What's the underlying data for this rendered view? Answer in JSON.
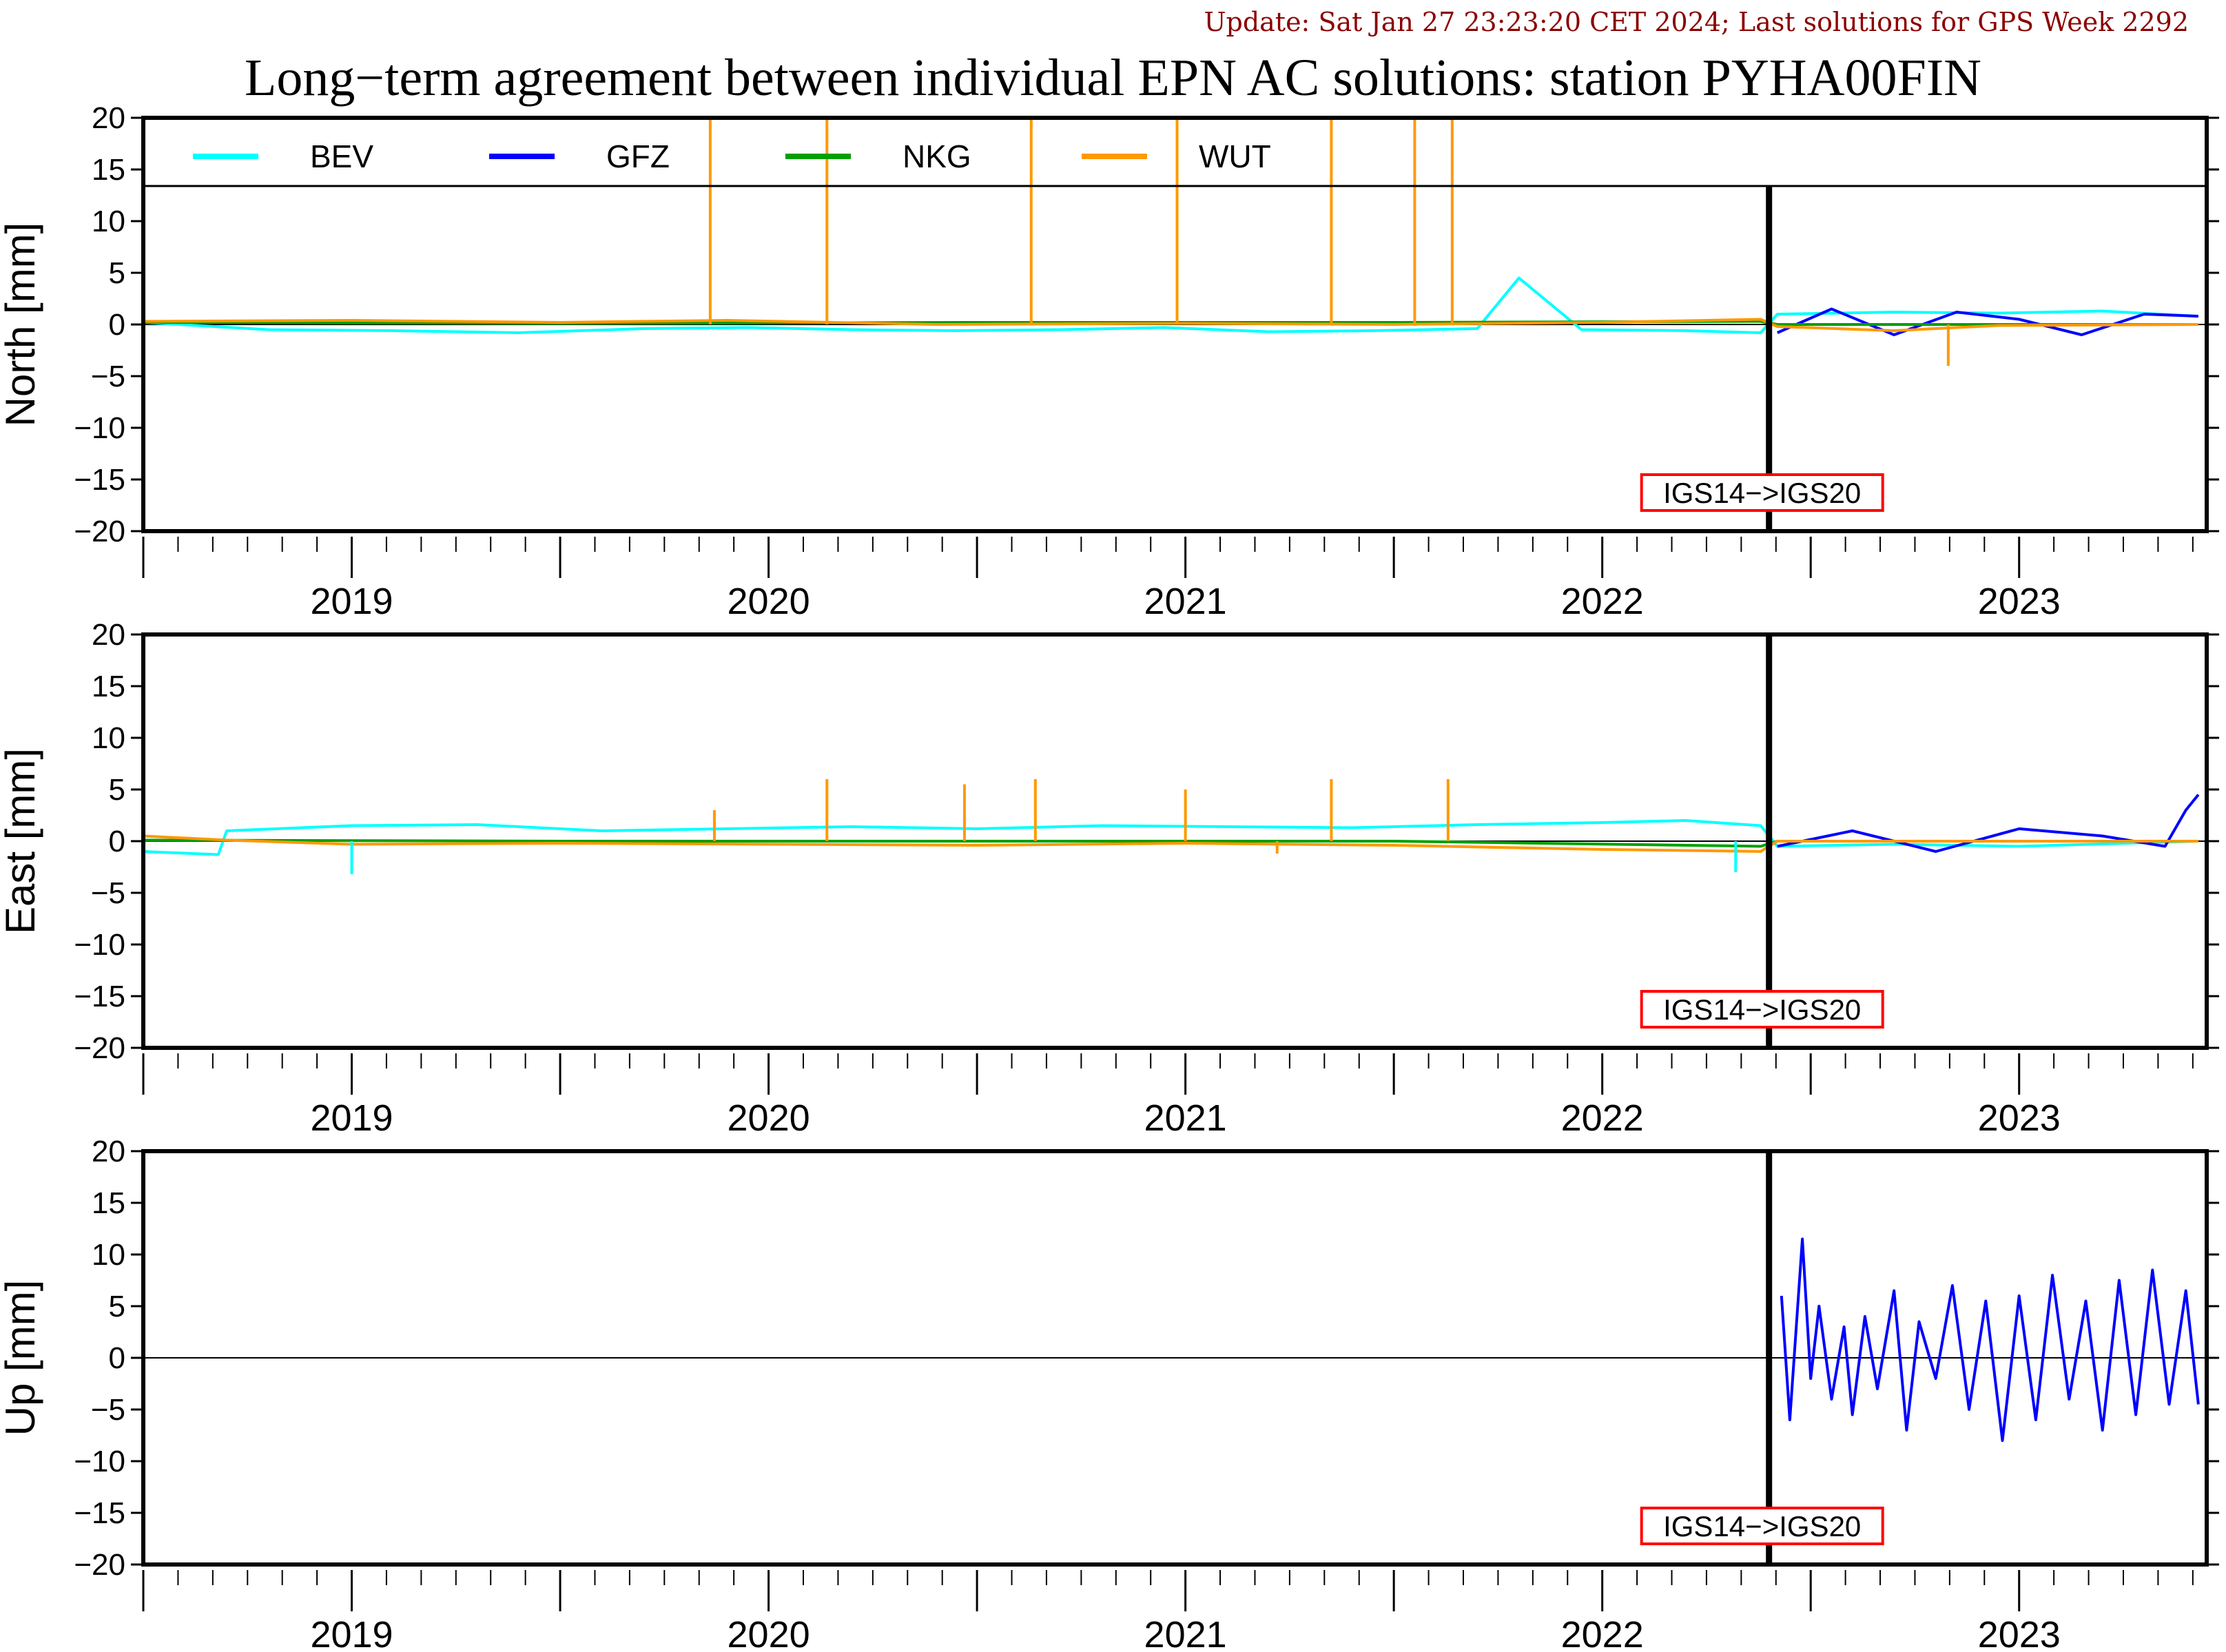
{
  "header": {
    "update_text": "Update: Sat Jan 27 23:23:20 CET 2024; Last solutions for GPS Week 2292",
    "title": "Long−term agreement between individual EPN AC solutions: station PYHA00FIN"
  },
  "colors": {
    "BEV": "#00ffff",
    "GFZ": "#0000ff",
    "NKG": "#00a000",
    "WUT": "#ff9900",
    "annotation": "#ff0000"
  },
  "legend": [
    {
      "name": "BEV",
      "color": "#00ffff"
    },
    {
      "name": "GFZ",
      "color": "#0000ff"
    },
    {
      "name": "NKG",
      "color": "#00a000"
    },
    {
      "name": "WUT",
      "color": "#ff9900"
    }
  ],
  "chart_data": [
    {
      "type": "line",
      "ylabel": "North [mm]",
      "ylim": [
        -20,
        20
      ],
      "yticks": [
        20,
        15,
        10,
        5,
        0,
        -5,
        -10,
        -15,
        -20
      ],
      "xlim": [
        2018.5,
        2023.45
      ],
      "xtick_labels": [
        "2019",
        "2020",
        "2021",
        "2022",
        "2023"
      ],
      "xtick_label_positions": [
        2019,
        2020,
        2021,
        2022,
        2023
      ],
      "frame_change": {
        "x": 2022.4,
        "label": "IGS14−>IGS20"
      },
      "legend_inside": true,
      "series": [
        {
          "name": "BEV",
          "color": "#00ffff",
          "x": [
            2018.5,
            2018.8,
            2019.1,
            2019.4,
            2019.7,
            2019.95,
            2020.2,
            2020.45,
            2020.7,
            2020.95,
            2021.2,
            2021.45,
            2021.7,
            2021.8,
            2021.95,
            2022.2,
            2022.38,
            2022.42,
            2022.7,
            2022.95,
            2023.2,
            2023.43
          ],
          "y": [
            0.2,
            -0.5,
            -0.6,
            -0.8,
            -0.4,
            -0.3,
            -0.5,
            -0.6,
            -0.5,
            -0.3,
            -0.7,
            -0.6,
            -0.4,
            4.5,
            -0.5,
            -0.6,
            -0.8,
            1.0,
            1.2,
            1.1,
            1.3,
            0.8
          ]
        },
        {
          "name": "GFZ",
          "color": "#0000ff",
          "x": [
            2022.42,
            2022.55,
            2022.7,
            2022.85,
            2023.0,
            2023.15,
            2023.3,
            2023.43
          ],
          "y": [
            -0.8,
            1.5,
            -1.0,
            1.2,
            0.5,
            -1.0,
            1.0,
            0.8
          ]
        },
        {
          "name": "NKG",
          "color": "#00a000",
          "x": [
            2018.5,
            2019.5,
            2020.5,
            2021.5,
            2022.38,
            2022.42,
            2023.43
          ],
          "y": [
            0.2,
            0.1,
            0.2,
            0.2,
            0.3,
            0.0,
            0.0
          ]
        },
        {
          "name": "WUT",
          "color": "#ff9900",
          "x": [
            2018.5,
            2019.0,
            2019.5,
            2019.9,
            2020.4,
            2021.0,
            2021.5,
            2022.0,
            2022.38,
            2022.42,
            2022.7,
            2022.95,
            2023.43
          ],
          "y": [
            0.3,
            0.4,
            0.2,
            0.4,
            0.0,
            0.1,
            0.0,
            0.2,
            0.5,
            -0.2,
            -0.6,
            -0.1,
            0.0
          ]
        }
      ],
      "spikes": [
        {
          "series": "WUT",
          "x": 2019.86,
          "y": 20
        },
        {
          "series": "WUT",
          "x": 2020.14,
          "y": 20
        },
        {
          "series": "WUT",
          "x": 2020.63,
          "y": 20
        },
        {
          "series": "WUT",
          "x": 2020.98,
          "y": 20
        },
        {
          "series": "WUT",
          "x": 2021.35,
          "y": 20
        },
        {
          "series": "WUT",
          "x": 2021.55,
          "y": 20
        },
        {
          "series": "WUT",
          "x": 2021.64,
          "y": 20
        },
        {
          "series": "WUT",
          "x": 2022.83,
          "y": -4.0
        }
      ]
    },
    {
      "type": "line",
      "ylabel": "East [mm]",
      "ylim": [
        -20,
        20
      ],
      "yticks": [
        20,
        15,
        10,
        5,
        0,
        -5,
        -10,
        -15,
        -20
      ],
      "xlim": [
        2018.5,
        2023.45
      ],
      "xtick_labels": [
        "2019",
        "2020",
        "2021",
        "2022",
        "2023"
      ],
      "xtick_label_positions": [
        2019,
        2020,
        2021,
        2022,
        2023
      ],
      "frame_change": {
        "x": 2022.4,
        "label": "IGS14−>IGS20"
      },
      "legend_inside": false,
      "series": [
        {
          "name": "BEV",
          "color": "#00ffff",
          "x": [
            2018.5,
            2018.68,
            2018.7,
            2019.0,
            2019.3,
            2019.6,
            2019.9,
            2020.2,
            2020.5,
            2020.8,
            2021.1,
            2021.4,
            2021.7,
            2022.0,
            2022.2,
            2022.38,
            2022.42,
            2022.7,
            2023.0,
            2023.43
          ],
          "y": [
            -1.0,
            -1.3,
            1.0,
            1.5,
            1.6,
            1.0,
            1.2,
            1.4,
            1.2,
            1.5,
            1.4,
            1.3,
            1.6,
            1.8,
            2.0,
            1.5,
            -0.5,
            -0.3,
            -0.5,
            0.0
          ]
        },
        {
          "name": "GFZ",
          "color": "#0000ff",
          "x": [
            2022.42,
            2022.6,
            2022.8,
            2023.0,
            2023.2,
            2023.35,
            2023.4,
            2023.43
          ],
          "y": [
            -0.5,
            1.0,
            -1.0,
            1.2,
            0.5,
            -0.5,
            3.0,
            4.5
          ]
        },
        {
          "name": "NKG",
          "color": "#00a000",
          "x": [
            2018.5,
            2019.5,
            2020.5,
            2021.5,
            2022.38,
            2022.42,
            2023.43
          ],
          "y": [
            0.1,
            0.0,
            0.0,
            0.0,
            -0.5,
            0.0,
            0.0
          ]
        },
        {
          "name": "WUT",
          "color": "#ff9900",
          "x": [
            2018.5,
            2018.7,
            2019.0,
            2019.5,
            2020.0,
            2020.5,
            2021.0,
            2021.5,
            2022.0,
            2022.38,
            2022.42,
            2023.43
          ],
          "y": [
            0.5,
            0.1,
            -0.3,
            -0.2,
            -0.3,
            -0.4,
            -0.2,
            -0.4,
            -0.8,
            -1.0,
            0.0,
            0.0
          ]
        }
      ],
      "spikes": [
        {
          "series": "BEV",
          "x": 2019.0,
          "y": -3.2
        },
        {
          "series": "WUT",
          "x": 2019.87,
          "y": 3.0
        },
        {
          "series": "WUT",
          "x": 2020.14,
          "y": 6.0
        },
        {
          "series": "WUT",
          "x": 2020.47,
          "y": 5.5
        },
        {
          "series": "WUT",
          "x": 2020.64,
          "y": 6.0
        },
        {
          "series": "WUT",
          "x": 2021.0,
          "y": 5.0
        },
        {
          "series": "WUT",
          "x": 2021.35,
          "y": 6.0
        },
        {
          "series": "WUT",
          "x": 2021.63,
          "y": 6.0
        },
        {
          "series": "WUT",
          "x": 2021.22,
          "y": -1.2
        },
        {
          "series": "BEV",
          "x": 2022.32,
          "y": -3.0
        }
      ]
    },
    {
      "type": "line",
      "ylabel": "Up [mm]",
      "ylim": [
        -20,
        20
      ],
      "yticks": [
        20,
        15,
        10,
        5,
        0,
        -5,
        -10,
        -15,
        -20
      ],
      "xlim": [
        2018.5,
        2023.45
      ],
      "xtick_labels": [
        "2019",
        "2020",
        "2021",
        "2022",
        "2023"
      ],
      "xtick_label_positions": [
        2019,
        2020,
        2021,
        2022,
        2023
      ],
      "frame_change": {
        "x": 2022.4,
        "label": "IGS14−>IGS20"
      },
      "legend_inside": false,
      "series": [
        {
          "name": "GFZ",
          "color": "#0000ff",
          "x": [
            2022.43,
            2022.45,
            2022.48,
            2022.5,
            2022.52,
            2022.55,
            2022.58,
            2022.6,
            2022.63,
            2022.66,
            2022.7,
            2022.73,
            2022.76,
            2022.8,
            2022.84,
            2022.88,
            2022.92,
            2022.96,
            2023.0,
            2023.04,
            2023.08,
            2023.12,
            2023.16,
            2023.2,
            2023.24,
            2023.28,
            2023.32,
            2023.36,
            2023.4,
            2023.43
          ],
          "y": [
            6.0,
            -6.0,
            11.5,
            -2.0,
            5.0,
            -4.0,
            3.0,
            -5.5,
            4.0,
            -3.0,
            6.5,
            -7.0,
            3.5,
            -2.0,
            7.0,
            -5.0,
            5.5,
            -8.0,
            6.0,
            -6.0,
            8.0,
            -4.0,
            5.5,
            -7.0,
            7.5,
            -5.5,
            8.5,
            -4.5,
            6.5,
            -4.5
          ]
        }
      ],
      "spikes": []
    }
  ]
}
